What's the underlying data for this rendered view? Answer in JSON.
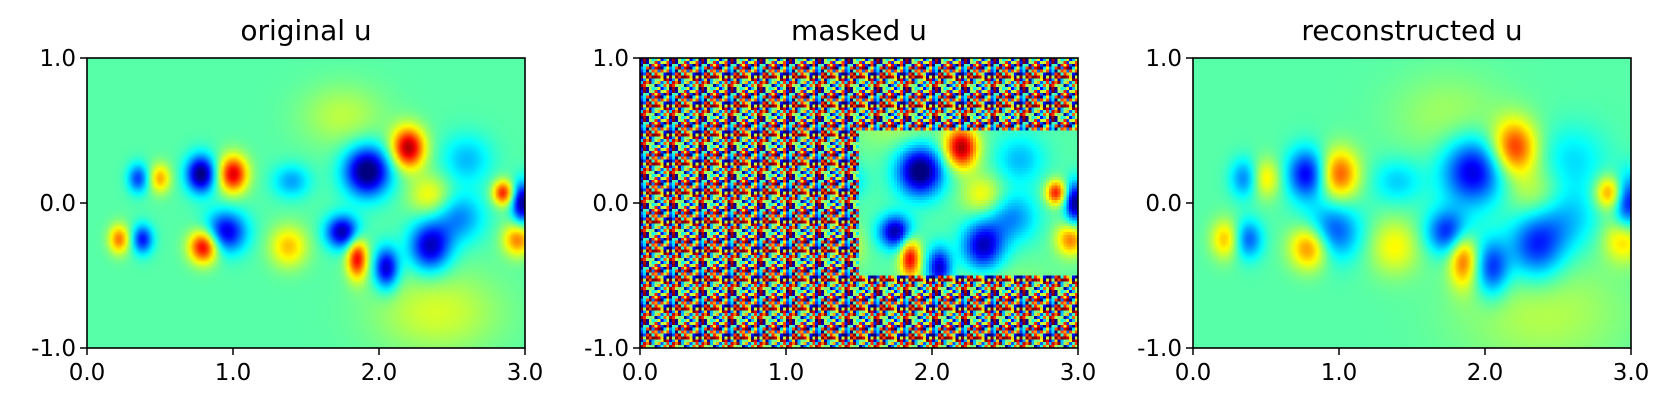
{
  "chart_data": [
    {
      "type": "heatmap",
      "title": "original u",
      "colormap": "jet",
      "xlim": [
        0.0,
        3.0
      ],
      "ylim": [
        -1.0,
        1.0
      ],
      "x_ticks": [
        "0.0",
        "1.0",
        "2.0",
        "3.0"
      ],
      "y_ticks": [
        "1.0",
        "0.0",
        "-1.0"
      ],
      "features": [
        {
          "x": 0.35,
          "y": 0.17,
          "value": -0.55,
          "sx": 0.05,
          "sy": 0.07
        },
        {
          "x": 0.5,
          "y": 0.17,
          "value": 0.5,
          "sx": 0.05,
          "sy": 0.07
        },
        {
          "x": 0.78,
          "y": 0.2,
          "value": -0.95,
          "sx": 0.07,
          "sy": 0.09
        },
        {
          "x": 1.0,
          "y": 0.2,
          "value": 0.9,
          "sx": 0.07,
          "sy": 0.09
        },
        {
          "x": 0.22,
          "y": -0.25,
          "value": 0.6,
          "sx": 0.05,
          "sy": 0.07
        },
        {
          "x": 0.38,
          "y": -0.25,
          "value": -0.65,
          "sx": 0.05,
          "sy": 0.07
        },
        {
          "x": 0.8,
          "y": -0.3,
          "value": 0.95,
          "sx": 0.07,
          "sy": 0.08
        },
        {
          "x": 0.95,
          "y": -0.2,
          "value": -0.75,
          "sx": 0.1,
          "sy": 0.1
        },
        {
          "x": 1.4,
          "y": 0.15,
          "value": -0.35,
          "sx": 0.09,
          "sy": 0.08
        },
        {
          "x": 1.38,
          "y": -0.3,
          "value": 0.45,
          "sx": 0.09,
          "sy": 0.1
        },
        {
          "x": 1.92,
          "y": 0.22,
          "value": -1.0,
          "sx": 0.11,
          "sy": 0.12
        },
        {
          "x": 2.2,
          "y": 0.38,
          "value": 1.0,
          "sx": 0.08,
          "sy": 0.1
        },
        {
          "x": 1.75,
          "y": -0.2,
          "value": -0.85,
          "sx": 0.08,
          "sy": 0.08
        },
        {
          "x": 1.85,
          "y": -0.38,
          "value": 0.85,
          "sx": 0.05,
          "sy": 0.1
        },
        {
          "x": 2.05,
          "y": -0.45,
          "value": -0.8,
          "sx": 0.06,
          "sy": 0.1
        },
        {
          "x": 2.35,
          "y": -0.3,
          "value": -0.8,
          "sx": 0.1,
          "sy": 0.12
        },
        {
          "x": 2.35,
          "y": 0.05,
          "value": 0.35,
          "sx": 0.1,
          "sy": 0.1
        },
        {
          "x": 2.55,
          "y": -0.1,
          "value": -0.4,
          "sx": 0.12,
          "sy": 0.12
        },
        {
          "x": 2.85,
          "y": 0.07,
          "value": 0.8,
          "sx": 0.05,
          "sy": 0.06
        },
        {
          "x": 2.98,
          "y": 0.0,
          "value": -0.9,
          "sx": 0.05,
          "sy": 0.1
        },
        {
          "x": 2.95,
          "y": -0.25,
          "value": 0.6,
          "sx": 0.07,
          "sy": 0.08
        },
        {
          "x": 2.6,
          "y": 0.3,
          "value": -0.3,
          "sx": 0.12,
          "sy": 0.12
        },
        {
          "x": 1.75,
          "y": 0.6,
          "value": 0.2,
          "sx": 0.2,
          "sy": 0.15
        },
        {
          "x": 2.4,
          "y": -0.75,
          "value": 0.25,
          "sx": 0.3,
          "sy": 0.2
        }
      ]
    },
    {
      "type": "heatmap",
      "title": "masked u",
      "colormap": "jet",
      "xlim": [
        0.0,
        3.0
      ],
      "ylim": [
        -1.0,
        1.0
      ],
      "x_ticks": [
        "0.0",
        "1.0",
        "2.0",
        "3.0"
      ],
      "y_ticks": [
        "1.0",
        "0.0",
        "-1.0"
      ],
      "unmasked_region": {
        "x": [
          1.5,
          3.0
        ],
        "y": [
          -0.5,
          0.5
        ]
      },
      "masked_fill": "random noise"
    },
    {
      "type": "heatmap",
      "title": "reconstructed u",
      "colormap": "jet",
      "xlim": [
        0.0,
        3.0
      ],
      "ylim": [
        -1.0,
        1.0
      ],
      "x_ticks": [
        "0.0",
        "1.0",
        "2.0",
        "3.0"
      ],
      "y_ticks": [
        "1.0",
        "0.0",
        "-1.0"
      ]
    }
  ]
}
